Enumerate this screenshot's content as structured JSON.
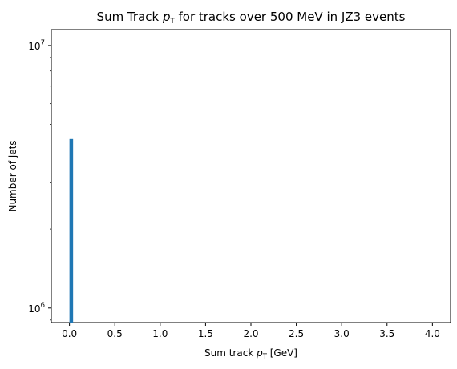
{
  "chart_data": {
    "type": "bar",
    "title": {
      "pre": "Sum Track ",
      "sym": "p",
      "sub": "T",
      "post": " for tracks over 500 MeV in JZ3 events"
    },
    "xlabel": {
      "pre": "Sum track ",
      "sym": "p",
      "sub": "T",
      "post": " [GeV]"
    },
    "ylabel": "Number of jets",
    "yscale": "log",
    "xlim": [
      -0.2,
      4.2
    ],
    "ylim": [
      880000,
      11500000
    ],
    "x_ticks": [
      "0.0",
      "0.5",
      "1.0",
      "1.5",
      "2.0",
      "2.5",
      "3.0",
      "3.5",
      "4.0"
    ],
    "y_ticks": [
      {
        "value": 1000000,
        "base": "10",
        "exp": "6"
      },
      {
        "value": 10000000,
        "base": "10",
        "exp": "7"
      }
    ],
    "bars": [
      {
        "x_start": 0.0,
        "x_end": 0.04,
        "value": 4400000
      }
    ],
    "bar_color": "#1f77b4",
    "grid": false,
    "legend": "none"
  }
}
